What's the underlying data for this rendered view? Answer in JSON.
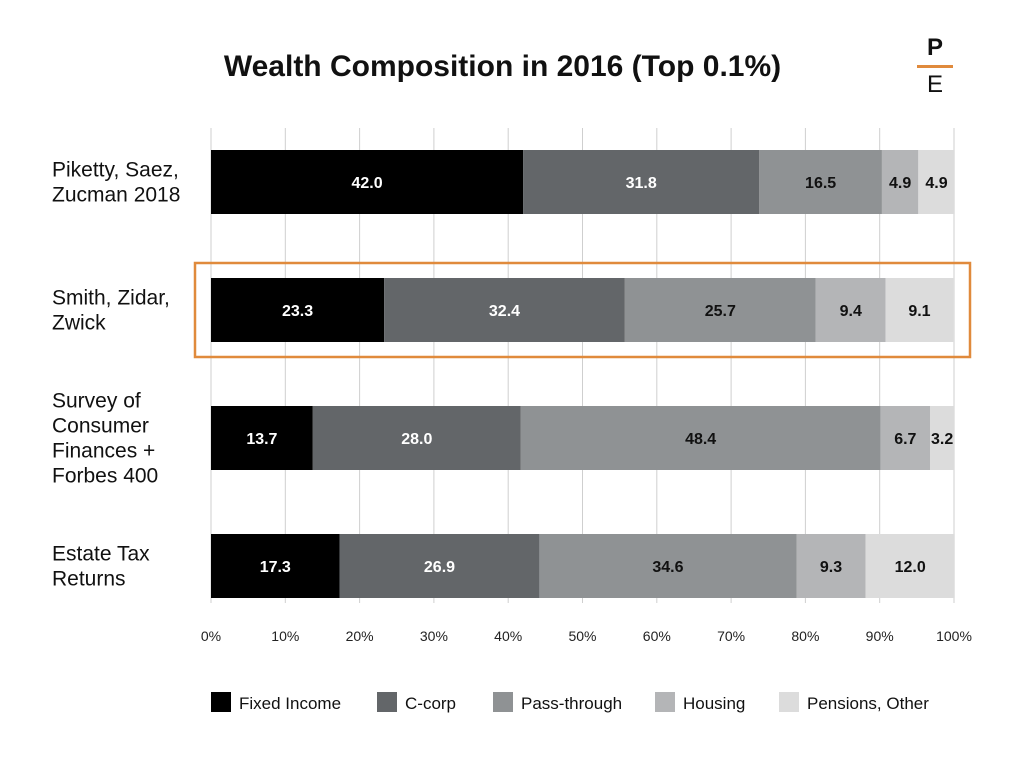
{
  "logo": {
    "top": "P",
    "bottom": "E",
    "line_color": "#e08a3c"
  },
  "chart_data": {
    "type": "bar",
    "orientation": "horizontal",
    "stacked": true,
    "title": "Wealth Composition in 2016 (Top 0.1%)",
    "categories": [
      [
        "Piketty, Saez,",
        "Zucman 2018"
      ],
      [
        "Smith, Zidar,",
        "Zwick"
      ],
      [
        "Survey of",
        "Consumer",
        "Finances +",
        "Forbes 400"
      ],
      [
        "Estate Tax",
        "Returns"
      ]
    ],
    "series": [
      {
        "name": "Fixed Income",
        "color": "#000000",
        "label_color": "#ffffff",
        "values": [
          42.0,
          23.3,
          13.7,
          17.3
        ]
      },
      {
        "name": "C-corp",
        "color": "#636669",
        "label_color": "#ffffff",
        "values": [
          31.8,
          32.4,
          28.0,
          26.9
        ]
      },
      {
        "name": "Pass-through",
        "color": "#8f9294",
        "label_color": "#111111",
        "values": [
          16.5,
          25.7,
          48.4,
          34.6
        ]
      },
      {
        "name": "Housing",
        "color": "#b4b5b7",
        "label_color": "#111111",
        "values": [
          4.9,
          9.4,
          6.7,
          9.3
        ]
      },
      {
        "name": "Pensions, Other",
        "color": "#dcdcdc",
        "label_color": "#111111",
        "values": [
          4.9,
          9.1,
          3.2,
          12.0
        ]
      }
    ],
    "xlim": [
      0,
      100
    ],
    "xticks": [
      "0%",
      "10%",
      "20%",
      "30%",
      "40%",
      "50%",
      "60%",
      "70%",
      "80%",
      "90%",
      "100%"
    ],
    "grid": "vertical",
    "legend_position": "bottom",
    "highlighted_category": [
      "Smith, Zidar,",
      "Zwick"
    ],
    "highlight_color": "#e08a3c"
  }
}
